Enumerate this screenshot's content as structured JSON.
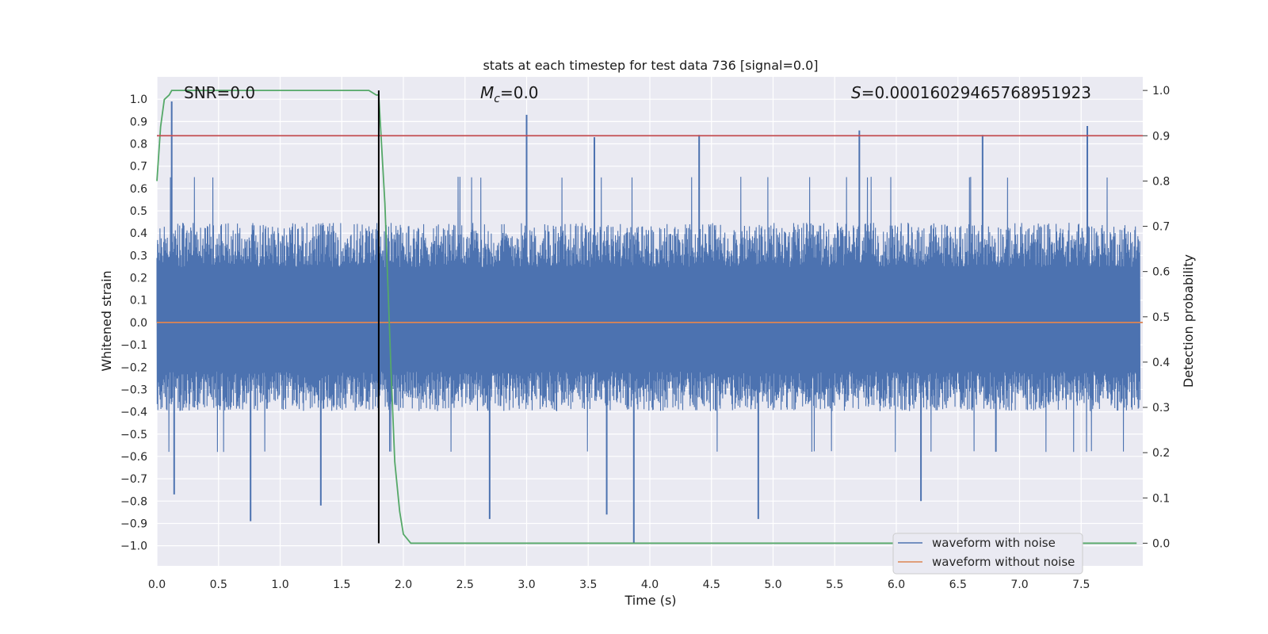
{
  "chart_data": {
    "type": "line",
    "title": "stats at each timestep for test data 736 [signal=0.0]",
    "xlabel": "Time (s)",
    "ylabel_left": "Whitened strain",
    "ylabel_right": "Detection probability",
    "xlim": [
      0.0,
      8.0
    ],
    "ylim_left": [
      -1.09,
      1.1
    ],
    "ylim_right": [
      -0.05,
      1.03
    ],
    "x_ticks": [
      "0.0",
      "0.5",
      "1.0",
      "1.5",
      "2.0",
      "2.5",
      "3.0",
      "3.5",
      "4.0",
      "4.5",
      "5.0",
      "5.5",
      "6.0",
      "6.5",
      "7.0",
      "7.5"
    ],
    "y_left_ticks": [
      "1.0",
      "0.9",
      "0.8",
      "0.7",
      "0.6",
      "0.5",
      "0.4",
      "0.3",
      "0.2",
      "0.1",
      "0.0",
      "−0.1",
      "−0.2",
      "−0.3",
      "−0.4",
      "−0.5",
      "−0.6",
      "−0.7",
      "−0.8",
      "−0.9",
      "−1.0"
    ],
    "y_right_ticks": [
      "1.0",
      "0.9",
      "0.8",
      "0.7",
      "0.6",
      "0.5",
      "0.4",
      "0.3",
      "0.2",
      "0.1",
      "0.0"
    ],
    "grid": true,
    "annotations": {
      "snr": "SNR=0.0",
      "mc_symbol": "M",
      "mc_sub": "c",
      "mc_value": "=0.0",
      "s_symbol": "S",
      "s_value": "=0.00016029465768951923"
    },
    "legend": {
      "position": "lower-right",
      "entries": [
        {
          "label": "waveform with noise",
          "color": "#4c72b0"
        },
        {
          "label": "waveform without noise",
          "color": "#dd8452"
        }
      ]
    },
    "series": [
      {
        "name": "waveform with noise",
        "axis": "left",
        "color": "#4c72b0",
        "kind": "noise",
        "typical_amplitude": [
          -0.4,
          0.45
        ],
        "peaks": [
          {
            "t": 0.12,
            "v": 0.99
          },
          {
            "t": 3.0,
            "v": 0.93
          },
          {
            "t": 7.55,
            "v": 0.88
          },
          {
            "t": 5.7,
            "v": 0.86
          },
          {
            "t": 3.55,
            "v": 0.83
          },
          {
            "t": 6.7,
            "v": 0.84
          },
          {
            "t": 4.4,
            "v": 0.84
          },
          {
            "t": 3.87,
            "v": -0.99
          },
          {
            "t": 4.88,
            "v": -0.88
          },
          {
            "t": 0.76,
            "v": -0.89
          },
          {
            "t": 2.7,
            "v": -0.88
          },
          {
            "t": 3.65,
            "v": -0.86
          },
          {
            "t": 6.2,
            "v": -0.8
          },
          {
            "t": 1.33,
            "v": -0.82
          },
          {
            "t": 0.14,
            "v": -0.77
          }
        ]
      },
      {
        "name": "waveform without noise",
        "axis": "left",
        "color": "#dd8452",
        "x": [
          0.0,
          8.0
        ],
        "y": [
          0.0,
          0.0
        ]
      },
      {
        "name": "detection probability",
        "axis": "right",
        "color": "#55a868",
        "x": [
          0.0,
          0.03,
          0.06,
          0.1,
          0.12,
          0.13,
          0.5,
          1.0,
          1.5,
          1.72,
          1.78,
          1.8,
          1.85,
          1.9,
          1.93,
          1.97,
          2.0,
          2.06,
          2.2,
          3.0,
          5.0,
          7.0,
          7.95
        ],
        "y": [
          0.8,
          0.92,
          0.98,
          0.99,
          1.0,
          1.0,
          1.0,
          1.0,
          1.0,
          1.0,
          0.99,
          0.99,
          0.75,
          0.38,
          0.18,
          0.07,
          0.02,
          0.0,
          0.0,
          0.0,
          0.0,
          0.0,
          0.0
        ]
      },
      {
        "name": "threshold",
        "axis": "right",
        "color": "#c44e52",
        "x": [
          0.0,
          8.0
        ],
        "y": [
          0.9,
          0.9
        ]
      },
      {
        "name": "detection marker",
        "axis": "right",
        "color": "#000000",
        "x": [
          1.8,
          1.8
        ],
        "y": [
          0.0,
          1.0
        ]
      }
    ]
  }
}
